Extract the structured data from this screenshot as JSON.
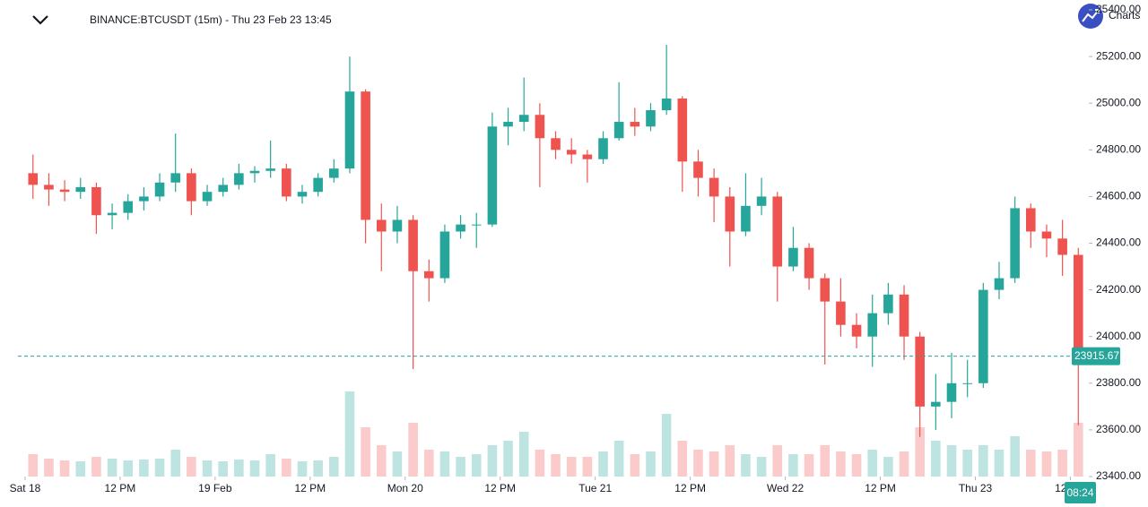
{
  "chart_data": {
    "type": "candlestick",
    "title": "BINANCE:BTCUSDT (15m) - Thu 23 Feb 23 13:45",
    "logo_text": "Charts",
    "countdown": "08:24",
    "last_price": 23915.67,
    "up_color": "#26a69a",
    "down_color": "#ef5350",
    "xlim": [
      -0.9,
      134.1
    ],
    "xticks": [
      {
        "value": 0,
        "label": "Sat 18"
      },
      {
        "value": 12,
        "label": "12 PM"
      },
      {
        "value": 24,
        "label": "19 Feb"
      },
      {
        "value": 36,
        "label": "12 PM"
      },
      {
        "value": 48,
        "label": "Mon 20"
      },
      {
        "value": 60,
        "label": "12 PM"
      },
      {
        "value": 72,
        "label": "Tue 21"
      },
      {
        "value": 84,
        "label": "12 PM"
      },
      {
        "value": 96,
        "label": "Wed 22"
      },
      {
        "value": 108,
        "label": "12 PM"
      },
      {
        "value": 120,
        "label": "Thu 23"
      },
      {
        "value": 132,
        "label": "12 PM"
      }
    ],
    "ylim": [
      23400,
      25400
    ],
    "yticks": [
      {
        "value": 23400,
        "label": "23400.00"
      },
      {
        "value": 23600,
        "label": "23600.00"
      },
      {
        "value": 23800,
        "label": "23800.00"
      },
      {
        "value": 24000,
        "label": "24000.00"
      },
      {
        "value": 24200,
        "label": "24200.00"
      },
      {
        "value": 24400,
        "label": "24400.00"
      },
      {
        "value": 24600,
        "label": "24600.00"
      },
      {
        "value": 24800,
        "label": "24800.00"
      },
      {
        "value": 25000,
        "label": "25000.00"
      },
      {
        "value": 25200,
        "label": "25200.00"
      },
      {
        "value": 25400,
        "label": "25400.00"
      }
    ],
    "x": [
      1,
      3,
      5,
      7,
      9,
      11,
      13,
      15,
      17,
      19,
      21,
      23,
      25,
      27,
      29,
      31,
      33,
      35,
      37,
      39,
      41,
      43,
      45,
      47,
      49,
      51,
      53,
      55,
      57,
      59,
      61,
      63,
      65,
      67,
      69,
      71,
      73,
      75,
      77,
      79,
      81,
      83,
      85,
      87,
      89,
      91,
      93,
      95,
      97,
      99,
      101,
      103,
      105,
      107,
      109,
      111,
      113,
      115,
      117,
      119,
      121,
      123,
      125,
      127,
      129,
      131,
      133
    ],
    "open": [
      24700,
      24650,
      24630,
      24620,
      24640,
      24520,
      24530,
      24580,
      24600,
      24660,
      24700,
      24580,
      24620,
      24650,
      24700,
      24710,
      24720,
      24600,
      24620,
      24680,
      24720,
      25050,
      24500,
      24450,
      24500,
      24280,
      24250,
      24450,
      24480,
      24480,
      24900,
      24920,
      24950,
      24850,
      24800,
      24780,
      24760,
      24850,
      24920,
      24900,
      24970,
      25020,
      24750,
      24680,
      24600,
      24450,
      24560,
      24600,
      24300,
      24380,
      24250,
      24150,
      24050,
      24000,
      24100,
      24180,
      24000,
      23700,
      23720,
      23800,
      23800,
      24200,
      24250,
      24550,
      24450,
      24420,
      24350
    ],
    "high": [
      24780,
      24700,
      24670,
      24680,
      24660,
      24570,
      24610,
      24640,
      24700,
      24870,
      24720,
      24650,
      24680,
      24740,
      24730,
      24840,
      24740,
      24650,
      24700,
      24760,
      25200,
      25060,
      24570,
      24560,
      24520,
      24330,
      24480,
      24520,
      24530,
      24960,
      24980,
      25110,
      25000,
      24880,
      24850,
      24800,
      24880,
      25090,
      24980,
      25000,
      25250,
      25030,
      24800,
      24720,
      24640,
      24700,
      24680,
      24620,
      24470,
      24400,
      24270,
      24250,
      24100,
      24180,
      24230,
      24220,
      24020,
      23840,
      23930,
      23900,
      24230,
      24320,
      24600,
      24570,
      24480,
      24500,
      24380
    ],
    "low": [
      24590,
      24560,
      24580,
      24590,
      24440,
      24460,
      24500,
      24540,
      24580,
      24620,
      24520,
      24560,
      24600,
      24630,
      24660,
      24680,
      24580,
      24570,
      24600,
      24660,
      24700,
      24400,
      24280,
      24400,
      23860,
      24150,
      24230,
      24420,
      24380,
      24470,
      24820,
      24880,
      24640,
      24760,
      24740,
      24660,
      24740,
      24840,
      24860,
      24880,
      24950,
      24620,
      24600,
      24490,
      24300,
      24430,
      24520,
      24150,
      24280,
      24200,
      23880,
      24000,
      23950,
      23870,
      24050,
      23900,
      23570,
      23600,
      23650,
      23740,
      23780,
      24160,
      24230,
      24380,
      24340,
      24260,
      23620
    ],
    "close": [
      24650,
      24630,
      24620,
      24640,
      24520,
      24530,
      24580,
      24600,
      24660,
      24700,
      24580,
      24620,
      24650,
      24700,
      24710,
      24720,
      24600,
      24620,
      24680,
      24720,
      25050,
      24500,
      24450,
      24500,
      24280,
      24250,
      24450,
      24480,
      24480,
      24900,
      24920,
      24950,
      24850,
      24800,
      24780,
      24760,
      24850,
      24920,
      24900,
      24970,
      25020,
      24750,
      24680,
      24600,
      24450,
      24560,
      24600,
      24300,
      24380,
      24250,
      24150,
      24050,
      24000,
      24100,
      24180,
      24000,
      23700,
      23720,
      23800,
      23800,
      24200,
      24250,
      24550,
      24450,
      24420,
      24350,
      23915.67
    ],
    "volume": [
      25,
      20,
      18,
      17,
      22,
      20,
      18,
      19,
      20,
      30,
      22,
      18,
      17,
      19,
      18,
      25,
      20,
      17,
      18,
      22,
      95,
      55,
      35,
      28,
      60,
      30,
      28,
      22,
      25,
      35,
      40,
      50,
      30,
      25,
      22,
      22,
      28,
      40,
      25,
      28,
      70,
      40,
      30,
      28,
      35,
      25,
      22,
      35,
      25,
      25,
      35,
      28,
      25,
      30,
      22,
      28,
      55,
      40,
      35,
      30,
      35,
      30,
      45,
      30,
      28,
      30,
      60
    ]
  }
}
